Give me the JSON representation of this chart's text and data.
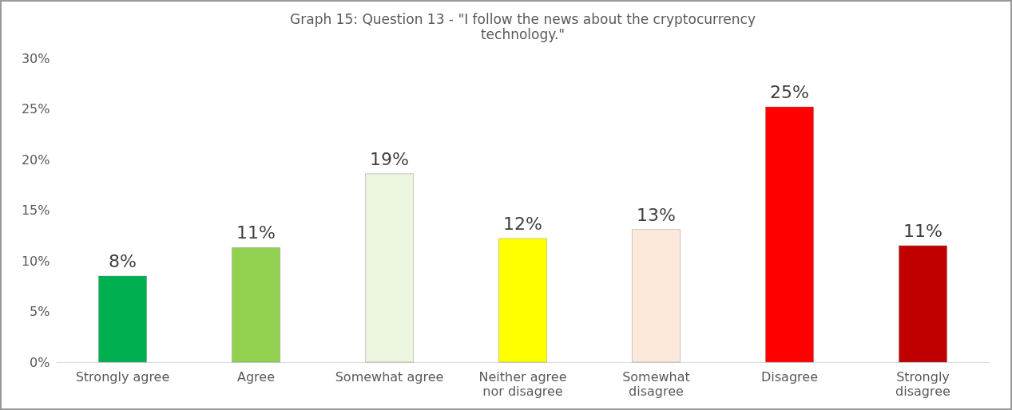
{
  "chart_data": {
    "type": "bar",
    "title": "Graph 15: Question 13 - \"I follow the news about the cryptocurrency technology.\"",
    "categories": [
      "Strongly agree",
      "Agree",
      "Somewhat agree",
      "Neither agree nor disagree",
      "Somewhat disagree",
      "Disagree",
      "Strongly disagree"
    ],
    "values": [
      8.5,
      11.3,
      18.6,
      12.2,
      13.1,
      25.2,
      11.5
    ],
    "value_labels": [
      "8%",
      "11%",
      "19%",
      "12%",
      "13%",
      "25%",
      "11%"
    ],
    "colors": [
      "#00b050",
      "#92d050",
      "#ebf5df",
      "#ffff00",
      "#fde9d9",
      "#ff0000",
      "#c00000"
    ],
    "ylim": [
      0,
      30
    ],
    "yticks": [
      {
        "value": 0,
        "label": "0%"
      },
      {
        "value": 5,
        "label": "5%"
      },
      {
        "value": 10,
        "label": "10%"
      },
      {
        "value": 15,
        "label": "15%"
      },
      {
        "value": 20,
        "label": "20%"
      },
      {
        "value": 25,
        "label": "25%"
      },
      {
        "value": 30,
        "label": "30%"
      }
    ],
    "grid": false
  }
}
